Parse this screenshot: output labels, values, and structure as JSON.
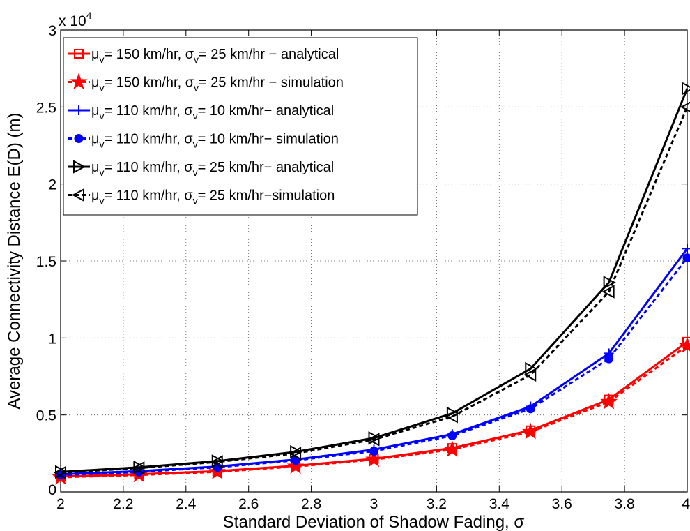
{
  "chart_data": {
    "type": "line",
    "xlabel": "Standard Deviation of Shadow Fading, σ",
    "ylabel": "Average Connectivity Distance E(D) (m)",
    "y_multiplier_label": "x 10",
    "y_multiplier_exponent": "4",
    "xlim": [
      2,
      4
    ],
    "ylim": [
      0,
      3
    ],
    "x_ticks": [
      "2",
      "2.2",
      "2.4",
      "2.6",
      "2.8",
      "3",
      "3.2",
      "3.4",
      "3.6",
      "3.8",
      "4"
    ],
    "y_ticks": [
      "0",
      "0.5",
      "1",
      "1.5",
      "2",
      "2.5",
      "3"
    ],
    "grid": true,
    "legend_position": "top-left",
    "x": [
      2,
      2.25,
      2.5,
      2.75,
      3,
      3.25,
      3.5,
      3.75,
      4
    ],
    "series": [
      {
        "name_prefix": "μ",
        "name_sub1": "v",
        "name_mid": "= 150 km/hr, σ",
        "name_sub2": "v",
        "name_suffix": "= 25 km/hr − analytical",
        "color": "#ff0000",
        "dash": "solid",
        "marker": "square",
        "values": [
          0.1,
          0.115,
          0.135,
          0.17,
          0.215,
          0.285,
          0.4,
          0.6,
          0.975
        ]
      },
      {
        "name_prefix": "μ",
        "name_sub1": "v",
        "name_mid": "= 150 km/hr, σ",
        "name_sub2": "v",
        "name_suffix": "= 25 km/hr − simulation",
        "color": "#ff0000",
        "dash": "dashed",
        "marker": "star",
        "values": [
          0.095,
          0.11,
          0.13,
          0.165,
          0.21,
          0.275,
          0.39,
          0.585,
          0.95
        ]
      },
      {
        "name_prefix": "μ",
        "name_sub1": "v",
        "name_mid": "= 110 km/hr, σ",
        "name_sub2": "v",
        "name_suffix": "= 10 km/hr− analytical",
        "color": "#0000ff",
        "dash": "solid",
        "marker": "plus",
        "values": [
          0.115,
          0.135,
          0.165,
          0.21,
          0.275,
          0.375,
          0.555,
          0.9,
          1.58
        ]
      },
      {
        "name_prefix": "μ",
        "name_sub1": "v",
        "name_mid": "= 110 km/hr, σ",
        "name_sub2": "v",
        "name_suffix": "= 10 km/hr− simulation",
        "color": "#0000ff",
        "dash": "dashed",
        "marker": "circle",
        "values": [
          0.11,
          0.13,
          0.16,
          0.205,
          0.265,
          0.365,
          0.54,
          0.865,
          1.52
        ]
      },
      {
        "name_prefix": "μ",
        "name_sub1": "v",
        "name_mid": "= 110 km/hr, σ",
        "name_sub2": "v",
        "name_suffix": "= 25 km/hr− analytical",
        "color": "#000000",
        "dash": "solid",
        "marker": "triangle-right",
        "values": [
          0.13,
          0.16,
          0.2,
          0.26,
          0.35,
          0.51,
          0.8,
          1.36,
          2.62
        ]
      },
      {
        "name_prefix": "μ",
        "name_sub1": "v",
        "name_mid": "= 110 km/hr, σ",
        "name_sub2": "v",
        "name_suffix": "= 25 km/hr−simulation",
        "color": "#000000",
        "dash": "dashed",
        "marker": "triangle-left",
        "values": [
          0.125,
          0.155,
          0.195,
          0.25,
          0.34,
          0.49,
          0.76,
          1.3,
          2.5
        ]
      }
    ]
  }
}
